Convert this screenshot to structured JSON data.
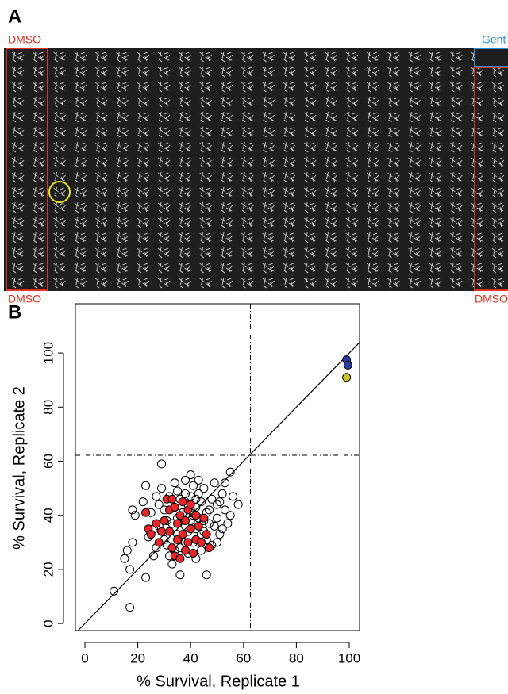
{
  "panel_labels": [
    "A",
    "B"
  ],
  "panel_a": {
    "top_left": "DMSO",
    "bottom_left": "DMSO",
    "top_right": "Gent",
    "bottom_right": "DMSO"
  },
  "chart_data": {
    "type": "scatter",
    "x_label": "% Survival, Replicate 1",
    "y_label": "% Survival, Replicate 2",
    "xlim": [
      -3.6,
      103.9
    ],
    "ylim": [
      -2.6,
      118.2
    ],
    "xticks": [
      0,
      20,
      40,
      60,
      80,
      100
    ],
    "yticks": [
      0,
      20,
      40,
      60,
      80,
      100
    ],
    "vline": 62.6,
    "hline": 62.2,
    "diagonal": true,
    "series": [
      {
        "color": "none",
        "x": [
          11,
          17,
          15,
          17,
          18,
          16,
          19,
          18,
          22,
          23,
          23,
          25,
          26,
          27,
          28,
          29,
          30,
          31,
          32,
          32,
          33,
          34,
          35,
          35,
          36,
          36,
          37,
          38,
          38,
          39,
          40,
          40,
          41,
          41,
          42,
          42,
          43,
          44,
          44,
          45,
          45,
          46,
          46,
          47,
          48,
          48,
          49,
          50,
          50,
          51,
          52,
          53,
          54,
          55,
          55,
          56,
          58,
          24,
          27,
          30,
          33,
          34,
          36,
          38,
          39,
          40,
          42,
          43,
          44,
          47,
          49,
          51,
          53,
          31,
          28,
          35,
          37,
          41,
          43,
          46,
          29,
          26,
          34,
          38,
          45,
          50,
          52,
          39,
          42,
          40
        ],
        "y": [
          12,
          6,
          24,
          20,
          30,
          27,
          40,
          42,
          45,
          17,
          51,
          41,
          35,
          28,
          44,
          59,
          31,
          38,
          47,
          25,
          22,
          52,
          49,
          33,
          18,
          28,
          41,
          36,
          53,
          44,
          38,
          47,
          30,
          51,
          43,
          35,
          39,
          45,
          27,
          50,
          34,
          18,
          41,
          37,
          46,
          29,
          52,
          39,
          44,
          33,
          48,
          42,
          37,
          56,
          40,
          47,
          44,
          32,
          47,
          42,
          37,
          43,
          46,
          30,
          26,
          55,
          24,
          48,
          33,
          42,
          36,
          45,
          52,
          29,
          36,
          39,
          45,
          40,
          53,
          31,
          50,
          25,
          27,
          48,
          38,
          30,
          35,
          34,
          46,
          42
        ]
      },
      {
        "color": "#e8262a",
        "x": [
          23,
          24,
          25,
          27,
          28,
          30,
          31,
          32,
          32,
          33,
          34,
          34,
          35,
          35,
          36,
          36,
          37,
          37,
          38,
          38,
          39,
          39,
          40,
          41,
          42,
          42,
          43,
          44,
          45,
          46,
          47,
          33,
          29,
          40
        ],
        "y": [
          41,
          35,
          33,
          37,
          30,
          38,
          46,
          42,
          34,
          28,
          43,
          25,
          37,
          31,
          40,
          24,
          33,
          45,
          27,
          38,
          30,
          42,
          35,
          26,
          40,
          31,
          36,
          30,
          39,
          33,
          28,
          46,
          34,
          44
        ]
      },
      {
        "color": "#2b3a9c",
        "x": [
          99,
          99.5
        ],
        "y": [
          97.5,
          95.5
        ]
      },
      {
        "color": "#c9c32a",
        "x": [
          99
        ],
        "y": [
          91
        ]
      }
    ]
  }
}
